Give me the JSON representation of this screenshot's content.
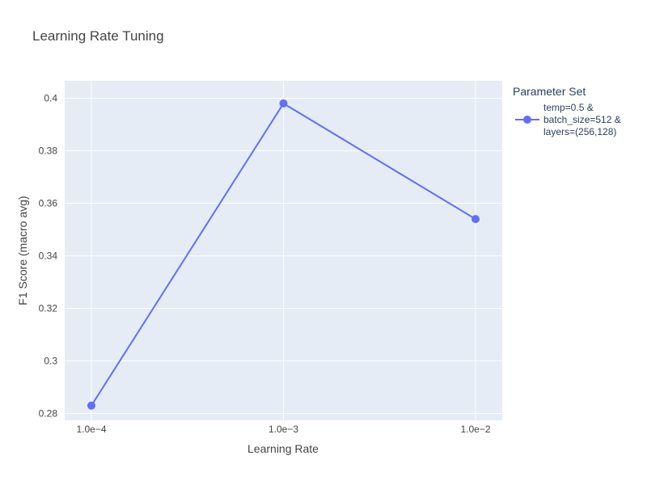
{
  "chart_data": {
    "type": "line",
    "title": "Learning Rate Tuning",
    "xlabel": "Learning Rate",
    "ylabel": "F1 Score (macro avg)",
    "x_scale": "log",
    "x_tick_labels": [
      "1.0e−4",
      "1.0e−3",
      "1.0e−2"
    ],
    "y_ticks": [
      0.28,
      0.3,
      0.32,
      0.34,
      0.36,
      0.38,
      0.4
    ],
    "y_tick_labels": [
      "0.28",
      "0.3",
      "0.32",
      "0.34",
      "0.36",
      "0.38",
      "0.4"
    ],
    "ylim": [
      0.2774,
      0.4066
    ],
    "grid": true,
    "legend": {
      "title": "Parameter Set",
      "placement": "right"
    },
    "series": [
      {
        "name": "temp=0.5 & batch_size=512 & layers=(256,128)",
        "name_lines": [
          "temp=0.5 &",
          "batch_size=512 &",
          "layers=(256,128)"
        ],
        "color": "#636efa",
        "x": [
          0.0001,
          0.001,
          0.01
        ],
        "y": [
          0.283,
          0.398,
          0.354
        ]
      }
    ]
  }
}
